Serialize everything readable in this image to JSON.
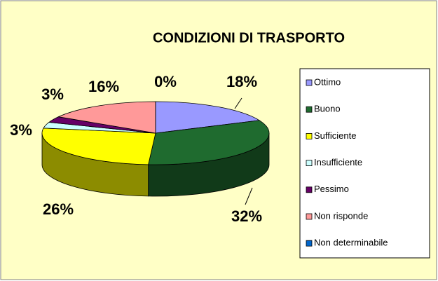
{
  "chart_data": {
    "type": "pie",
    "title": "CONDIZIONI DI TRASPORTO",
    "categories": [
      "Ottimo",
      "Buono",
      "Sufficiente",
      "Insufficiente",
      "Pessimo",
      "Non risponde",
      "Non determinabile"
    ],
    "values": [
      18,
      32,
      26,
      3,
      3,
      16,
      0
    ],
    "value_labels": [
      "18%",
      "32%",
      "26%",
      "3%",
      "3%",
      "16%",
      "0%"
    ],
    "colors": [
      "#9999ff",
      "#1f6b2f",
      "#ffff00",
      "#ccffff",
      "#660066",
      "#ff9999",
      "#0066cc"
    ],
    "legend": "right"
  }
}
